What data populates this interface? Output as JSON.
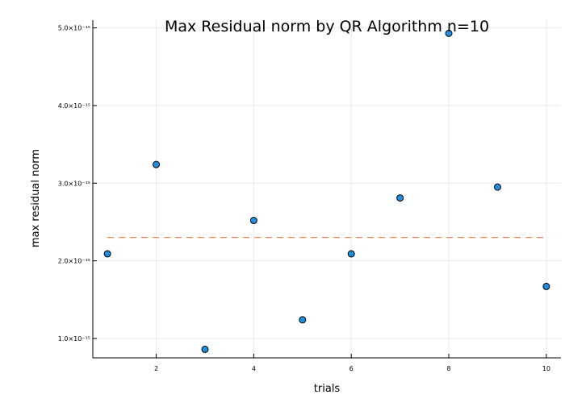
{
  "chart_data": {
    "type": "scatter",
    "title": "Max Residual norm by QR Algorithm  n=10",
    "xlabel": "trials",
    "ylabel": "max residual norm",
    "xlim": [
      0.7,
      10.3
    ],
    "ylim": [
      7.5e-16,
      5.1e-15
    ],
    "x_ticks": [
      2,
      4,
      6,
      8,
      10
    ],
    "x_tick_labels": [
      "2",
      "4",
      "6",
      "8",
      "10"
    ],
    "y_ticks": [
      1e-15,
      2e-15,
      3e-15,
      4e-15,
      5e-15
    ],
    "y_tick_labels": [
      "1.0×10⁻¹⁵",
      "2.0×10⁻¹⁵",
      "3.0×10⁻¹⁵",
      "4.0×10⁻¹⁵",
      "5.0×10⁻¹⁵"
    ],
    "grid": true,
    "series": [
      {
        "x": [
          1,
          2,
          3,
          4,
          5,
          6,
          7,
          8,
          9,
          10
        ],
        "y": [
          2.09e-15,
          3.24e-15,
          8.6e-16,
          2.52e-15,
          1.24e-15,
          2.09e-15,
          2.81e-15,
          4.93e-15,
          2.95e-15,
          1.67e-15
        ],
        "color": "#1f8fe0"
      }
    ],
    "reference_line": {
      "y": 2.3e-15,
      "x_range": [
        1,
        10
      ],
      "color": "#e07a4b",
      "style": "dashed"
    }
  }
}
